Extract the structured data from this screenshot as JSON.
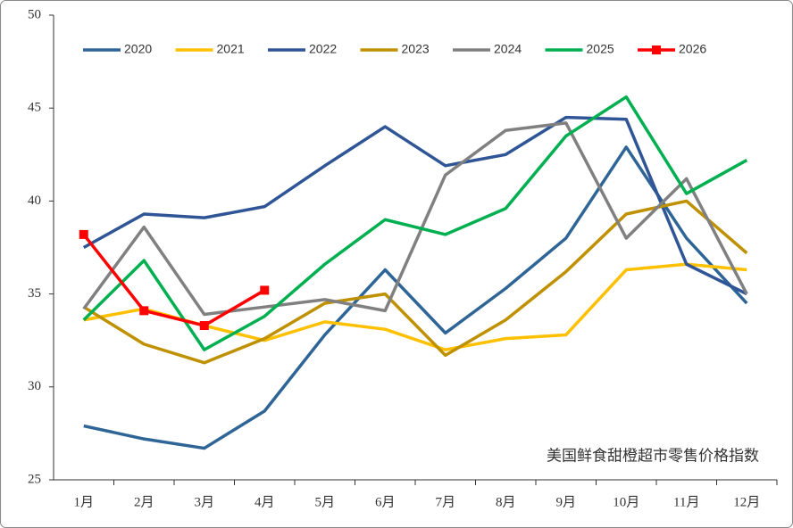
{
  "chart_data": {
    "type": "line",
    "annotation": "美国鲜食甜橙超市零售价格指数",
    "categories": [
      "1月",
      "2月",
      "3月",
      "4月",
      "5月",
      "6月",
      "7月",
      "8月",
      "9月",
      "10月",
      "11月",
      "12月"
    ],
    "series": [
      {
        "name": "2020",
        "color": "#2e6596",
        "values": [
          27.9,
          27.2,
          26.7,
          28.7,
          32.8,
          36.3,
          32.9,
          35.3,
          38.0,
          42.9,
          38.0,
          34.5
        ]
      },
      {
        "name": "2021",
        "color": "#ffc000",
        "values": [
          33.6,
          34.2,
          33.3,
          32.5,
          33.5,
          33.1,
          32.0,
          32.6,
          32.8,
          36.3,
          36.6,
          36.3
        ]
      },
      {
        "name": "2022",
        "color": "#2f5597",
        "values": [
          37.5,
          39.3,
          39.1,
          39.7,
          41.9,
          44.0,
          41.9,
          42.5,
          44.5,
          44.4,
          36.6,
          35.0
        ]
      },
      {
        "name": "2023",
        "color": "#bf9000",
        "values": [
          34.3,
          32.3,
          31.3,
          32.6,
          34.5,
          35.0,
          31.7,
          33.6,
          36.2,
          39.3,
          40.0,
          37.2
        ]
      },
      {
        "name": "2024",
        "color": "#808080",
        "values": [
          34.2,
          38.6,
          33.9,
          34.3,
          34.7,
          34.1,
          41.4,
          43.8,
          44.2,
          38.0,
          41.2,
          35.0
        ]
      },
      {
        "name": "2025",
        "color": "#00b050",
        "values": [
          33.6,
          36.8,
          32.0,
          33.8,
          36.6,
          39.0,
          38.2,
          39.6,
          43.5,
          45.6,
          40.4,
          42.2
        ]
      },
      {
        "name": "2026",
        "color": "#ff0000",
        "marker": "square",
        "values": [
          38.2,
          34.1,
          33.3,
          35.2,
          null,
          null,
          null,
          null,
          null,
          null,
          null,
          null
        ]
      }
    ],
    "ylim": [
      25,
      50
    ],
    "yticks": [
      25,
      30,
      35,
      40,
      45,
      50
    ],
    "grid": false,
    "legend": "top"
  }
}
